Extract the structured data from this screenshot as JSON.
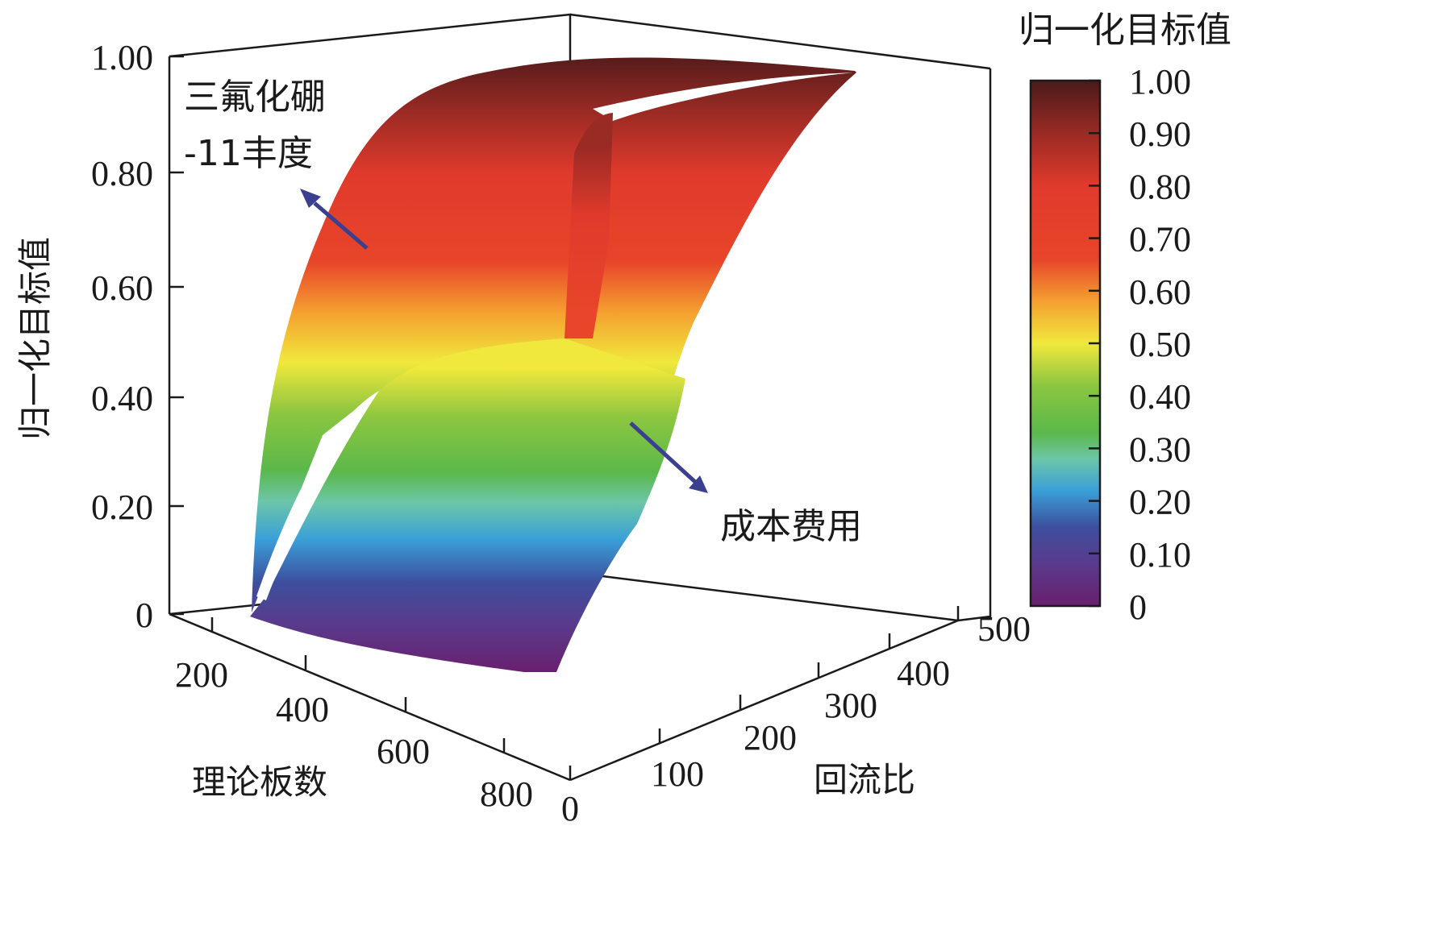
{
  "chart_data": {
    "type": "surface3d",
    "zlabel": "归一化目标值",
    "xlabel": "理论板数",
    "ylabel": "回流比",
    "colorbar_title": "归一化目标值",
    "x_ticks": [
      "200",
      "400",
      "600",
      "800"
    ],
    "y_ticks": [
      "0",
      "100",
      "200",
      "300",
      "400",
      "500"
    ],
    "z_ticks": [
      "0",
      "0.20",
      "0.40",
      "0.60",
      "0.80",
      "1.00"
    ],
    "colorbar_ticks": [
      "0",
      "0.10",
      "0.20",
      "0.30",
      "0.40",
      "0.50",
      "0.60",
      "0.70",
      "0.80",
      "0.90",
      "1.00"
    ],
    "zlim": [
      0,
      1.0
    ],
    "colormap": [
      {
        "v": 0.0,
        "color": "#6a1f6e"
      },
      {
        "v": 0.08,
        "color": "#5a3a8c"
      },
      {
        "v": 0.15,
        "color": "#3d4f9e"
      },
      {
        "v": 0.22,
        "color": "#3aa0d8"
      },
      {
        "v": 0.28,
        "color": "#6cc6a8"
      },
      {
        "v": 0.33,
        "color": "#5bb84a"
      },
      {
        "v": 0.42,
        "color": "#8cc640"
      },
      {
        "v": 0.5,
        "color": "#f0e83c"
      },
      {
        "v": 0.58,
        "color": "#f4a030"
      },
      {
        "v": 0.66,
        "color": "#e8452a"
      },
      {
        "v": 0.8,
        "color": "#e03a2c"
      },
      {
        "v": 0.9,
        "color": "#9a2a24"
      },
      {
        "v": 1.0,
        "color": "#4a1a1a"
      }
    ],
    "series": [
      {
        "name": "三氟化硼-11丰度",
        "color_range": [
          0.3,
          1.0
        ]
      },
      {
        "name": "成本费用",
        "color_range": [
          0.0,
          0.55
        ]
      }
    ],
    "annotations": [
      {
        "text": "三氟化硼",
        "target": "三氟化硼-11丰度"
      },
      {
        "text": "-11丰度",
        "target": "三氟化硼-11丰度"
      },
      {
        "text": "成本费用",
        "target": "成本费用"
      }
    ],
    "arrow_color": "#3a3f8f"
  }
}
